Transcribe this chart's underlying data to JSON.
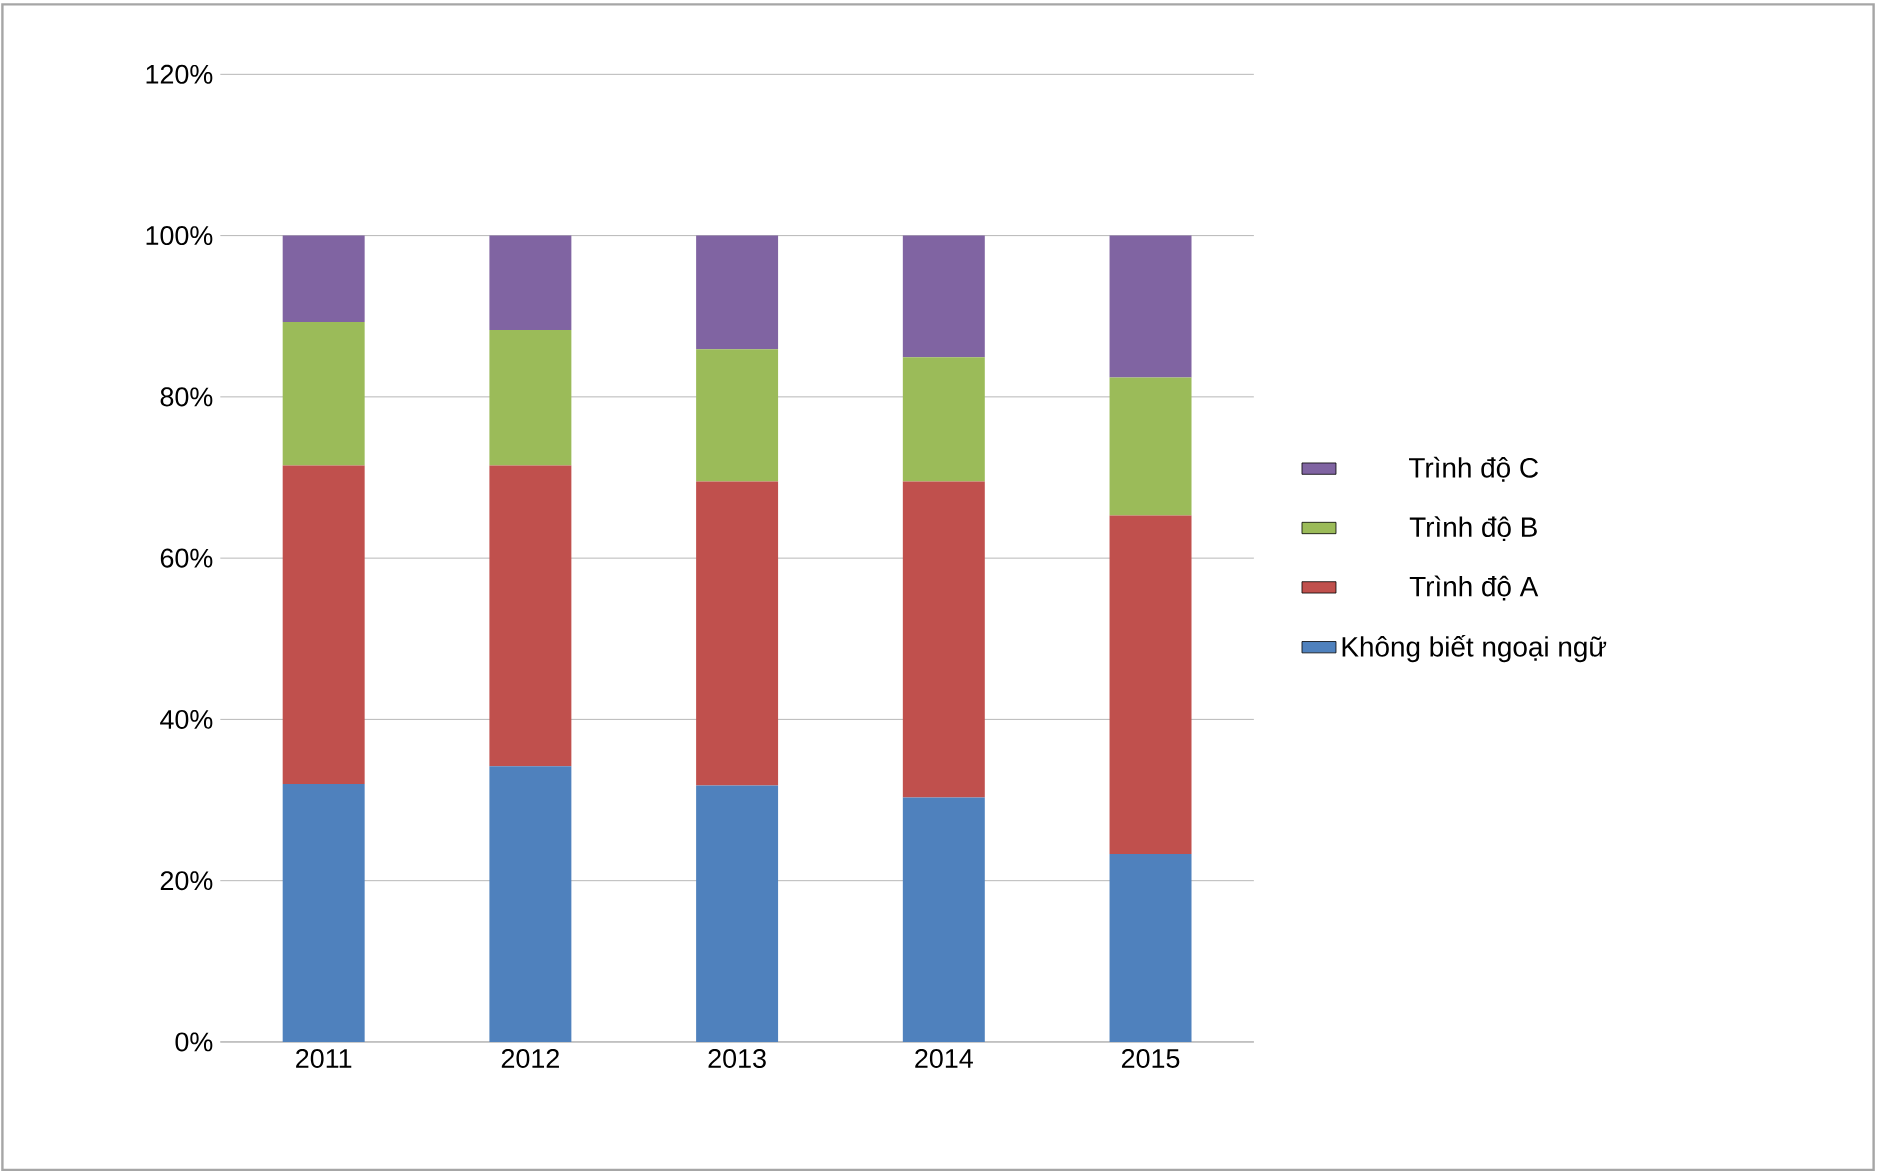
{
  "chart_data": {
    "type": "bar",
    "stacked": true,
    "categories": [
      "2011",
      "2012",
      "2013",
      "2014",
      "2015"
    ],
    "series": [
      {
        "name": "Không biết ngoại ngữ",
        "color": "#4f81bd",
        "values": [
          32.0,
          34.2,
          31.8,
          30.3,
          23.3
        ]
      },
      {
        "name": "Trình độ A",
        "color": "#c0504d",
        "values": [
          39.5,
          37.3,
          37.7,
          39.2,
          42.0
        ]
      },
      {
        "name": "Trình độ B",
        "color": "#9bbb59",
        "values": [
          17.8,
          16.8,
          16.4,
          15.4,
          17.1
        ]
      },
      {
        "name": "Trình độ C",
        "color": "#8064a2",
        "values": [
          10.7,
          11.7,
          14.1,
          15.1,
          17.6
        ]
      }
    ],
    "ylim": [
      0,
      120
    ],
    "yticks": [
      {
        "value": 0,
        "label": "0%"
      },
      {
        "value": 20,
        "label": "20%"
      },
      {
        "value": 40,
        "label": "40%"
      },
      {
        "value": 60,
        "label": "60%"
      },
      {
        "value": 80,
        "label": "80%"
      },
      {
        "value": 100,
        "label": "100%"
      },
      {
        "value": 120,
        "label": "120%"
      }
    ],
    "grid": "y",
    "legend": "right"
  }
}
